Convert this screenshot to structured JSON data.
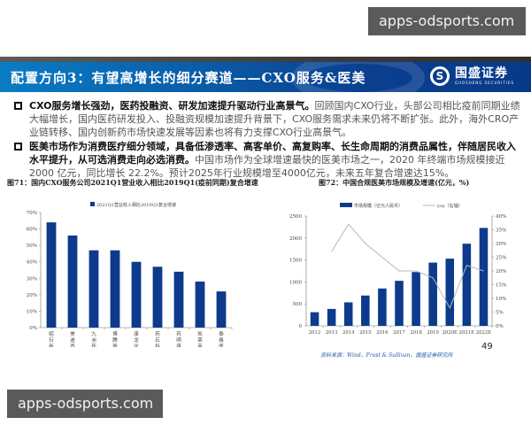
{
  "watermarks": {
    "top": "apps-odsports.com",
    "bottom": "apps-odsports.com"
  },
  "header": {
    "title": "配置方向3：有望高增长的细分赛道——CXO服务&医美",
    "logo_cn": "国盛证券",
    "logo_en": "GUOSHENG SECURITIES",
    "logo_mark": "S"
  },
  "bullets": [
    {
      "bold": "CXO服务增长强劲，医药投融资、研发加速提升驱动行业高景气。",
      "text": "回顾国内CXO行业，头部公司相比疫前同期业绩大幅增长，国内医药研发投入、投融资规模加速提升背景下，CXO服务需求未来仍将不断扩张。此外，海外CRO产业链转移、国内创新药市场快速发展等因素也将有力支撑CXO行业高景气。"
    },
    {
      "bold": "医美市场作为消费医疗细分领域，具备低渗透率、高客单价、高复购率、长生命周期的消费品属性，伴随居民收入水平提升，从可选消费走向必选消费。",
      "text": "中国市场作为全球增速最快的医美市场之一，2020 年终端市场规模接近 2000 亿元，同比增长 22.2%。预计2025年行业规模增至4000亿元，未来五年复合增速达15%。"
    }
  ],
  "figures": {
    "fig1_title": "图71：国内CXO服务公司2021Q1营业收入相比2019Q1(疫前同期)复合增速",
    "fig2_title": "图72：中国合规医美市场规模及增速(亿元，%)"
  },
  "source": "资料来源：Wind、Frost & Sullivan、国盛证券研究所",
  "page_number": "49",
  "colors": {
    "bar": "#0d3a8c",
    "line": "#b8b8b8",
    "header_start": "#0a7cc4",
    "header_end": "#093a8a",
    "watermark_bg": "#5a5a5a"
  },
  "chart_data": [
    {
      "type": "bar",
      "title": "图71：国内CXO服务公司2021Q1营业收入相比2019Q1(疫前同期)复合增速",
      "legend": [
        "2021Q1营业收入相比2019Q1复合增速"
      ],
      "legend_position": "top",
      "categories": [
        "昭衍新药",
        "美迪西",
        "九洲药业",
        "博腾股份",
        "康龙化成",
        "药石科技",
        "药明康德",
        "凯莱英",
        "泰格医药"
      ],
      "values": [
        64,
        56,
        47,
        47,
        40,
        37,
        34,
        28,
        22
      ],
      "unit": "%",
      "ylim": [
        0,
        70
      ],
      "yticks": [
        "0%",
        "10%",
        "20%",
        "30%",
        "40%",
        "50%",
        "60%",
        "70%"
      ],
      "grid": false
    },
    {
      "type": "bar+line",
      "title": "图72：中国合规医美市场规模及增速(亿元，%)",
      "legend": [
        "市场规模（亿元人民币）",
        "yoy（右轴）"
      ],
      "legend_position": "top",
      "categories": [
        "2012",
        "2013",
        "2014",
        "2015",
        "2016",
        "2017",
        "2018",
        "2019",
        "2020E",
        "2021E",
        "2022E"
      ],
      "series": [
        {
          "name": "市场规模（亿元人民币）",
          "type": "bar",
          "axis": "left",
          "values": [
            310,
            385,
            535,
            690,
            850,
            1025,
            1225,
            1440,
            1530,
            1870,
            2230
          ]
        },
        {
          "name": "yoy（右轴）",
          "type": "line",
          "axis": "right",
          "values": [
            null,
            27,
            37,
            30,
            25,
            20,
            20,
            17.5,
            6.5,
            22,
            20
          ]
        }
      ],
      "ylim_left": [
        0,
        2500
      ],
      "yticks_left": [
        "0",
        "500",
        "1000",
        "1500",
        "2000",
        "2500"
      ],
      "ylim_right": [
        0,
        40
      ],
      "yticks_right": [
        "0%",
        "5%",
        "10%",
        "15%",
        "20%",
        "25%",
        "30%",
        "35%",
        "40%"
      ],
      "grid": false
    }
  ]
}
